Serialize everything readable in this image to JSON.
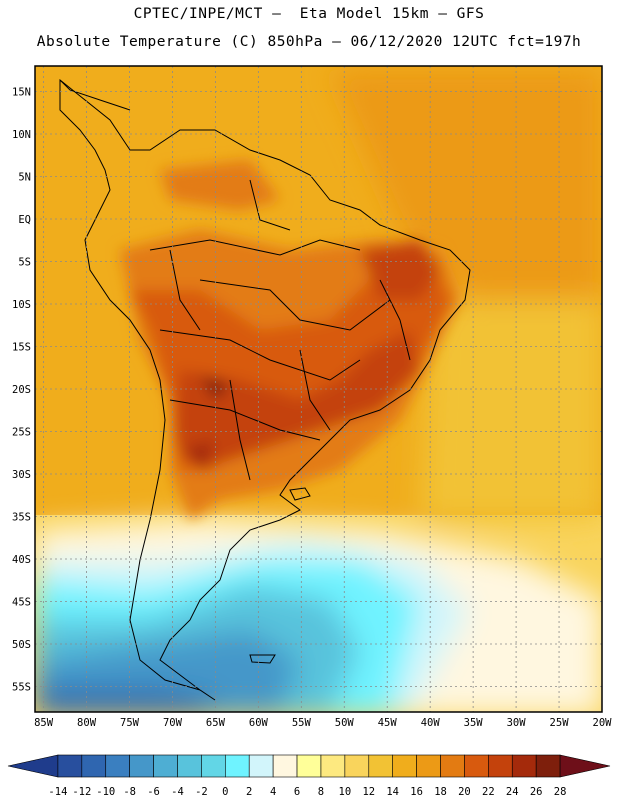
{
  "header": {
    "line1": "CPTEC/INPE/MCT –  Eta Model 15km – GFS",
    "line2": "Absolute Temperature (C) 850hPa – 06/12/2020 12UTC fct=197h"
  },
  "map": {
    "lat_labels": [
      "15N",
      "10N",
      "5N",
      "EQ",
      "5S",
      "10S",
      "15S",
      "20S",
      "25S",
      "30S",
      "35S",
      "40S",
      "45S",
      "50S",
      "55S"
    ],
    "lon_labels": [
      "85W",
      "80W",
      "75W",
      "70W",
      "65W",
      "60W",
      "55W",
      "50W",
      "45W",
      "40W",
      "35W",
      "30W",
      "25W",
      "20W"
    ],
    "lat_range": [
      18,
      -58
    ],
    "lon_range": [
      -86,
      -20
    ]
  },
  "colorbar": {
    "ticks": [
      "-14",
      "-12",
      "-10",
      "-8",
      "-6",
      "-4",
      "-2",
      "0",
      "2",
      "4",
      "6",
      "8",
      "10",
      "12",
      "14",
      "16",
      "18",
      "20",
      "22",
      "24",
      "26",
      "28"
    ],
    "colors": [
      "#1f3c8c",
      "#284f9e",
      "#2f66b0",
      "#3a7fc0",
      "#4597c9",
      "#4eaed3",
      "#58c3dc",
      "#62d6e6",
      "#6ff3ff",
      "#d2f5fb",
      "#fff7e0",
      "#ffff99",
      "#fde980",
      "#f9d45c",
      "#f2c234",
      "#f0ad1c",
      "#ec9a16",
      "#e37b12",
      "#d85a0e",
      "#c4420c",
      "#a42a0b",
      "#7e1f0c",
      "#6e0f19"
    ]
  }
}
